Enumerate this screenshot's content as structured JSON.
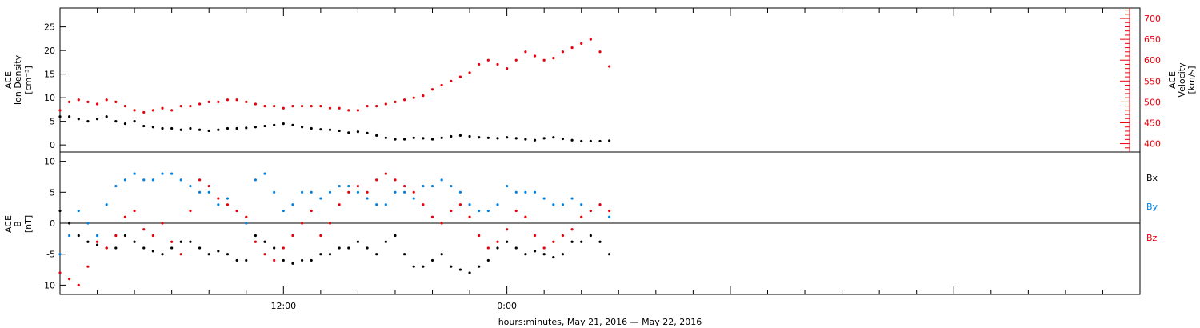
{
  "chart_data": [
    {
      "type": "scatter",
      "panel": "top",
      "ylabel_left": [
        "ACE",
        "Ion Density",
        "[cm⁻³]"
      ],
      "ylabel_right": [
        "ACE",
        "Velocity",
        "[km/s]"
      ],
      "left_ylim": [
        -1.5,
        29
      ],
      "left_ticks": [
        "0",
        "5",
        "10",
        "15",
        "20",
        "25"
      ],
      "left_tick_values": [
        0,
        5,
        10,
        15,
        20,
        25
      ],
      "right_ylim": [
        380,
        725
      ],
      "right_ticks": [
        "400",
        "450",
        "500",
        "550",
        "600",
        "650",
        "700"
      ],
      "right_tick_values": [
        400,
        450,
        500,
        550,
        600,
        650,
        700
      ],
      "series": [
        {
          "name": "",
          "axis": "left",
          "color": "#000000",
          "x": [
            0,
            0.5,
            1,
            1.5,
            2,
            2.5,
            3,
            3.5,
            4,
            4.5,
            5,
            5.5,
            6,
            6.5,
            7,
            7.5,
            8,
            8.5,
            9,
            9.5,
            10,
            10.5,
            11,
            11.5,
            12,
            12.5,
            13,
            13.5,
            14,
            14.5,
            15,
            15.5,
            16,
            16.5,
            17,
            17.5,
            18,
            18.5,
            19,
            19.5,
            20,
            20.5,
            21,
            21.5,
            22,
            22.5,
            23,
            23.5,
            24,
            24.5,
            25,
            25.5,
            26,
            26.5,
            27,
            27.5,
            28,
            28.5,
            29,
            29.5
          ],
          "y": [
            6,
            6,
            5.5,
            5,
            5.5,
            6,
            5,
            4.5,
            5,
            4,
            3.8,
            3.5,
            3.5,
            3.2,
            3.5,
            3.2,
            3,
            3.2,
            3.5,
            3.5,
            3.6,
            3.8,
            4,
            4.2,
            4.5,
            4.2,
            3.8,
            3.5,
            3.3,
            3.2,
            3,
            2.6,
            2.8,
            2.5,
            2,
            1.5,
            1.2,
            1.2,
            1.5,
            1.4,
            1.2,
            1.5,
            1.8,
            2,
            1.8,
            1.6,
            1.5,
            1.4,
            1.6,
            1.4,
            1.2,
            1,
            1.4,
            1.6,
            1.3,
            1,
            0.8,
            0.8,
            0.8,
            0.9
          ]
        },
        {
          "name": "",
          "axis": "right",
          "color": "#e8000b",
          "x": [
            0,
            0.5,
            1,
            1.5,
            2,
            2.5,
            3,
            3.5,
            4,
            4.5,
            5,
            5.5,
            6,
            6.5,
            7,
            7.5,
            8,
            8.5,
            9,
            9.5,
            10,
            10.5,
            11,
            11.5,
            12,
            12.5,
            13,
            13.5,
            14,
            14.5,
            15,
            15.5,
            16,
            16.5,
            17,
            17.5,
            18,
            18.5,
            19,
            19.5,
            20,
            20.5,
            21,
            21.5,
            22,
            22.5,
            23,
            23.5,
            24,
            24.5,
            25,
            25.5,
            26,
            26.5,
            27,
            27.5,
            28,
            28.5,
            29,
            29.5
          ],
          "y": [
            480,
            500,
            505,
            500,
            495,
            505,
            500,
            490,
            480,
            475,
            480,
            485,
            480,
            490,
            490,
            495,
            500,
            500,
            505,
            505,
            500,
            495,
            490,
            490,
            485,
            490,
            490,
            490,
            490,
            485,
            485,
            480,
            480,
            490,
            490,
            495,
            500,
            505,
            510,
            515,
            530,
            540,
            550,
            560,
            570,
            590,
            600,
            590,
            580,
            600,
            620,
            610,
            600,
            605,
            620,
            630,
            640,
            650,
            620,
            585
          ]
        }
      ]
    },
    {
      "type": "scatter",
      "panel": "bottom",
      "ylabel_left": [
        "ACE",
        "B",
        "[nT]"
      ],
      "ylim": [
        -11.5,
        11.5
      ],
      "y_ticks": [
        "-10",
        "-5",
        "0",
        "5",
        "10"
      ],
      "y_tick_values": [
        -10,
        -5,
        0,
        5,
        10
      ],
      "zero_line": true,
      "x_ticks": [
        "12:00",
        "0:00"
      ],
      "x_tick_hours": [
        12,
        24
      ],
      "x_range_hours": [
        0,
        58
      ],
      "xlabel": "hours:minutes, May 21, 2016 — May 22, 2016",
      "legend": [
        "Bx",
        "By",
        "Bz"
      ],
      "series": [
        {
          "name": "Bx",
          "color": "#000000",
          "x": [
            0,
            0.5,
            1,
            1.5,
            2,
            2.5,
            3,
            3.5,
            4,
            4.5,
            5,
            5.5,
            6,
            6.5,
            7,
            7.5,
            8,
            8.5,
            9,
            9.5,
            10,
            10.5,
            11,
            11.5,
            12,
            12.5,
            13,
            13.5,
            14,
            14.5,
            15,
            15.5,
            16,
            16.5,
            17,
            17.5,
            18,
            18.5,
            19,
            19.5,
            20,
            20.5,
            21,
            21.5,
            22,
            22.5,
            23,
            23.5,
            24,
            24.5,
            25,
            25.5,
            26,
            26.5,
            27,
            27.5,
            28,
            28.5,
            29,
            29.5
          ],
          "y": [
            2,
            0,
            -2,
            -3,
            -3.5,
            -4,
            -4,
            -2,
            -3,
            -4,
            -4.5,
            -5,
            -4,
            -3,
            -3,
            -4,
            -5,
            -4.5,
            -5,
            -6,
            -6,
            -2,
            -3,
            -4,
            -6,
            -6.5,
            -6,
            -6,
            -5,
            -5,
            -4,
            -4,
            -3,
            -4,
            -5,
            -3,
            -2,
            -5,
            -7,
            -7,
            -6,
            -5,
            -7,
            -7.5,
            -8,
            -7,
            -6,
            -4,
            -3,
            -4,
            -5,
            -4.5,
            -5,
            -5.5,
            -5,
            -3,
            -3,
            -2,
            -3,
            -5
          ]
        },
        {
          "name": "By",
          "color": "#0080e0",
          "x": [
            0,
            0.5,
            1,
            1.5,
            2,
            2.5,
            3,
            3.5,
            4,
            4.5,
            5,
            5.5,
            6,
            6.5,
            7,
            7.5,
            8,
            8.5,
            9,
            9.5,
            10,
            10.5,
            11,
            11.5,
            12,
            12.5,
            13,
            13.5,
            14,
            14.5,
            15,
            15.5,
            16,
            16.5,
            17,
            17.5,
            18,
            18.5,
            19,
            19.5,
            20,
            20.5,
            21,
            21.5,
            22,
            22.5,
            23,
            23.5,
            24,
            24.5,
            25,
            25.5,
            26,
            26.5,
            27,
            27.5,
            28,
            28.5,
            29,
            29.5
          ],
          "y": [
            -5,
            -2,
            2,
            0,
            -2,
            3,
            6,
            7,
            8,
            7,
            7,
            8,
            8,
            7,
            6,
            5,
            5,
            3,
            4,
            2,
            0,
            7,
            8,
            5,
            2,
            3,
            5,
            5,
            4,
            5,
            6,
            6,
            5,
            4,
            3,
            3,
            5,
            5,
            4,
            6,
            6,
            7,
            6,
            5,
            3,
            2,
            2,
            3,
            6,
            5,
            5,
            5,
            4,
            3,
            3,
            4,
            3,
            2,
            3,
            1
          ]
        },
        {
          "name": "Bz",
          "color": "#e8000b",
          "x": [
            0,
            0.5,
            1,
            1.5,
            2,
            2.5,
            3,
            3.5,
            4,
            4.5,
            5,
            5.5,
            6,
            6.5,
            7,
            7.5,
            8,
            8.5,
            9,
            9.5,
            10,
            10.5,
            11,
            11.5,
            12,
            12.5,
            13,
            13.5,
            14,
            14.5,
            15,
            15.5,
            16,
            16.5,
            17,
            17.5,
            18,
            18.5,
            19,
            19.5,
            20,
            20.5,
            21,
            21.5,
            22,
            22.5,
            23,
            23.5,
            24,
            24.5,
            25,
            25.5,
            26,
            26.5,
            27,
            27.5,
            28,
            28.5,
            29,
            29.5
          ],
          "y": [
            -8,
            -9,
            -10,
            -7,
            -3,
            -4,
            -2,
            1,
            2,
            -1,
            -2,
            0,
            -3,
            -5,
            2,
            7,
            6,
            4,
            3,
            2,
            1,
            -3,
            -5,
            -6,
            -4,
            -2,
            0,
            2,
            -2,
            0,
            3,
            5,
            6,
            5,
            7,
            8,
            7,
            6,
            5,
            3,
            1,
            0,
            2,
            3,
            1,
            -2,
            -4,
            -3,
            -1,
            2,
            1,
            -2,
            -4,
            -3,
            -2,
            -1,
            1,
            2,
            3,
            2
          ]
        }
      ]
    }
  ]
}
